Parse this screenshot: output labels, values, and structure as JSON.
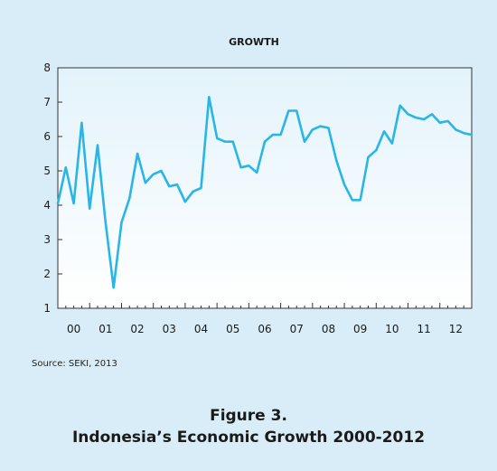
{
  "chart_data": {
    "type": "line",
    "title": "GROWTH",
    "xlabel": "",
    "ylabel": "",
    "ylim": [
      1,
      8
    ],
    "yticks": [
      1,
      2,
      3,
      4,
      5,
      6,
      7,
      8
    ],
    "xlim": [
      2000.0,
      2013.0
    ],
    "xtick_labels": [
      "00",
      "01",
      "02",
      "03",
      "04",
      "05",
      "06",
      "07",
      "08",
      "09",
      "10",
      "11",
      "12"
    ],
    "grid": false,
    "line_color": "#29b6e6",
    "series": [
      {
        "x": [
          2000.0,
          2000.25,
          2000.5,
          2000.75,
          2001.0,
          2001.25,
          2001.5,
          2001.75,
          2002.0,
          2002.25,
          2002.5,
          2002.75,
          2003.0,
          2003.25,
          2003.5,
          2003.75,
          2004.0,
          2004.25,
          2004.5,
          2004.75,
          2005.0,
          2005.25,
          2005.5,
          2005.75,
          2006.0,
          2006.25,
          2006.5,
          2006.75,
          2007.0,
          2007.25,
          2007.5,
          2007.75,
          2008.0,
          2008.25,
          2008.5,
          2008.75,
          2009.0,
          2009.25,
          2009.5,
          2009.75,
          2010.0,
          2010.25,
          2010.5,
          2010.75,
          2011.0,
          2011.25,
          2011.5,
          2011.75,
          2012.0,
          2012.25,
          2012.5,
          2012.75,
          2013.0
        ],
        "values": [
          4.05,
          5.1,
          4.05,
          6.4,
          3.9,
          5.75,
          3.5,
          1.6,
          3.5,
          4.2,
          5.5,
          4.65,
          4.9,
          5.0,
          4.55,
          4.6,
          4.1,
          4.4,
          4.5,
          7.15,
          5.95,
          5.85,
          5.85,
          5.1,
          5.15,
          4.95,
          5.85,
          6.05,
          6.05,
          6.75,
          6.75,
          5.85,
          6.2,
          6.3,
          6.25,
          5.3,
          4.6,
          4.15,
          4.15,
          5.4,
          5.6,
          6.15,
          5.8,
          6.9,
          6.65,
          6.55,
          6.5,
          6.65,
          6.4,
          6.45,
          6.2,
          6.1,
          6.05
        ]
      }
    ]
  },
  "source": "Source: SEKI, 2013",
  "caption": {
    "line1": "Figure 3.",
    "line2": "Indonesia’s Economic Growth 2000-2012"
  },
  "colors": {
    "panel_bg": "#d9edf8",
    "plot_bg_top": "#e6f5fc",
    "plot_bg_bottom": "#ffffff",
    "line": "#29b6e6"
  }
}
